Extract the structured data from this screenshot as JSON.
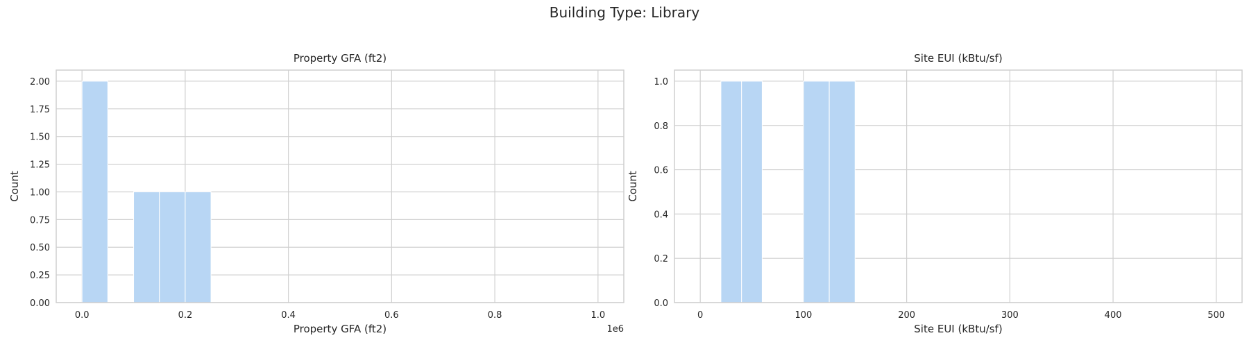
{
  "figure": {
    "suptitle": "Building Type: Library"
  },
  "chart_data": [
    {
      "type": "bar",
      "title": "Property GFA (ft2)",
      "xlabel": "Property GFA (ft2)",
      "ylabel": "Count",
      "offset_label": "1e6",
      "xlim": [
        -0.05,
        1.05
      ],
      "ylim": [
        0,
        2.1
      ],
      "xticks": [
        0.0,
        0.2,
        0.4,
        0.6,
        0.8,
        1.0
      ],
      "xtick_labels": [
        "0.0",
        "0.2",
        "0.4",
        "0.6",
        "0.8",
        "1.0"
      ],
      "yticks": [
        0,
        0.25,
        0.5,
        0.75,
        1.0,
        1.25,
        1.5,
        1.75,
        2.0
      ],
      "ytick_labels": [
        "0.00",
        "0.25",
        "0.50",
        "0.75",
        "1.00",
        "1.25",
        "1.50",
        "1.75",
        "2.00"
      ],
      "bins": [
        {
          "x0": 0.0,
          "x1": 0.05,
          "count": 2
        },
        {
          "x0": 0.1,
          "x1": 0.15,
          "count": 1
        },
        {
          "x0": 0.15,
          "x1": 0.2,
          "count": 1
        },
        {
          "x0": 0.2,
          "x1": 0.25,
          "count": 1
        }
      ],
      "grid": true,
      "color": "#b8d6f4"
    },
    {
      "type": "bar",
      "title": "Site EUI (kBtu/sf)",
      "xlabel": "Site EUI (kBtu/sf)",
      "ylabel": "Count",
      "xlim": [
        -25,
        525
      ],
      "ylim": [
        0,
        1.05
      ],
      "xticks": [
        0,
        100,
        200,
        300,
        400,
        500
      ],
      "xtick_labels": [
        "0",
        "100",
        "200",
        "300",
        "400",
        "500"
      ],
      "yticks": [
        0,
        0.2,
        0.4,
        0.6,
        0.8,
        1.0
      ],
      "ytick_labels": [
        "0.0",
        "0.2",
        "0.4",
        "0.6",
        "0.8",
        "1.0"
      ],
      "bins": [
        {
          "x0": 20,
          "x1": 40,
          "count": 1
        },
        {
          "x0": 40,
          "x1": 60,
          "count": 1
        },
        {
          "x0": 100,
          "x1": 125,
          "count": 1
        },
        {
          "x0": 125,
          "x1": 150,
          "count": 1
        }
      ],
      "grid": true,
      "color": "#b8d6f4"
    }
  ]
}
